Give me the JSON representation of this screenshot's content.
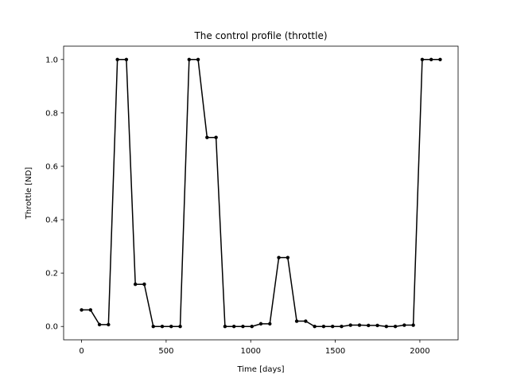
{
  "chart_data": {
    "type": "line",
    "title": "The control profile (throttle)",
    "xlabel": "Time [days]",
    "ylabel": "Throttle [ND]",
    "xlim": [
      -106,
      2226
    ],
    "ylim": [
      -0.05,
      1.05
    ],
    "xticks": [
      0,
      500,
      1000,
      1500,
      2000
    ],
    "yticks": [
      0.0,
      0.2,
      0.4,
      0.6,
      0.8,
      1.0
    ],
    "xtick_labels": [
      "0",
      "500",
      "1000",
      "1500",
      "2000"
    ],
    "ytick_labels": [
      "0.0",
      "0.2",
      "0.4",
      "0.6",
      "0.8",
      "1.0"
    ],
    "grid": false,
    "line_color": "#000000",
    "series": [
      {
        "x": [
          0,
          53,
          106,
          159,
          212,
          265,
          318,
          371,
          424,
          477,
          530,
          583,
          636,
          689,
          742,
          795,
          848,
          901,
          954,
          1007,
          1060,
          1113,
          1166,
          1219,
          1272,
          1325,
          1378,
          1431,
          1484,
          1537,
          1590,
          1643,
          1696,
          1749,
          1802,
          1855,
          1908,
          1961,
          2014,
          2067,
          2120
        ],
        "y": [
          0.062,
          0.062,
          0.007,
          0.007,
          1.0,
          1.0,
          0.158,
          0.158,
          0.0,
          0.0,
          0.0,
          0.0,
          1.0,
          1.0,
          0.708,
          0.708,
          0.0,
          0.0,
          0.0,
          0.0,
          0.01,
          0.01,
          0.258,
          0.258,
          0.02,
          0.02,
          0.0,
          0.0,
          0.0,
          0.0,
          0.005,
          0.005,
          0.004,
          0.004,
          0.0,
          0.0,
          0.005,
          0.005,
          1.0,
          1.0,
          1.0
        ]
      }
    ]
  }
}
